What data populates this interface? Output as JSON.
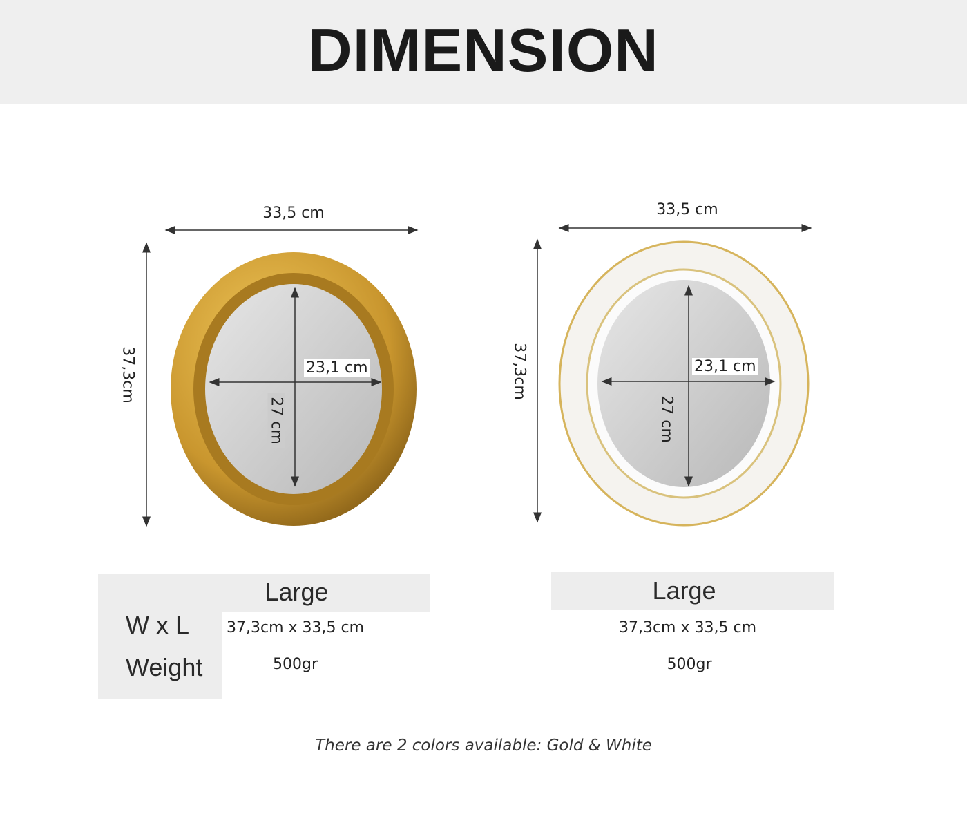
{
  "title": "DIMENSION",
  "products": [
    {
      "color": "Gold",
      "frame_color": "#c9962e",
      "width_label": "33,5 cm",
      "height_label": "37,3cm",
      "mirror_width_label": "23,1 cm",
      "mirror_height_label": "27 cm",
      "size": "Large",
      "wxl": "37,3cm",
      "x": "x",
      "wxl2": "33,5 cm",
      "weight": "500gr"
    },
    {
      "color": "White",
      "frame_color": "#f4f2ee",
      "width_label": "33,5 cm",
      "height_label": "37,3cm",
      "mirror_width_label": "23,1 cm",
      "mirror_height_label": "27 cm",
      "size": "Large",
      "wxl": "37,3cm",
      "x": "x",
      "wxl2": "33,5 cm",
      "weight": "500gr"
    }
  ],
  "row_labels": {
    "wxl": "W x L",
    "weight": "Weight"
  },
  "footer": "There are 2 colors available: Gold & White"
}
